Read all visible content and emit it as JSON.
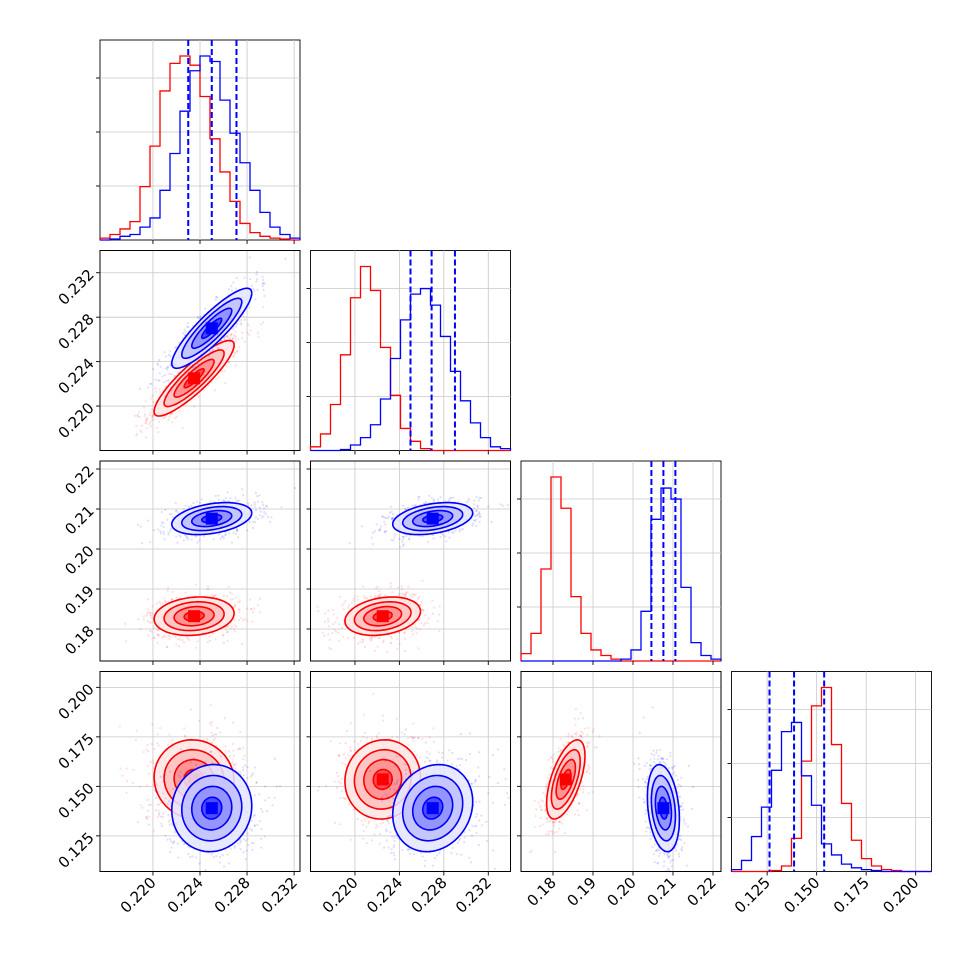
{
  "chart_data": {
    "type": "corner",
    "grid": true,
    "series": [
      {
        "color": "#ff0000"
      },
      {
        "color": "#0000ff"
      }
    ],
    "params": [
      {
        "range": [
          0.2155,
          0.2325
        ],
        "ticks": [
          "0.220",
          "0.224",
          "0.228",
          "0.232"
        ],
        "tick_values": [
          0.22,
          0.224,
          0.228,
          0.232
        ],
        "hist": [
          {
            "series": 0,
            "values": [
              0.01,
              0.03,
              0.06,
              0.1,
              0.29,
              0.51,
              0.81,
              0.96,
              1.0,
              0.95,
              0.78,
              0.55,
              0.37,
              0.21,
              0.09,
              0.04,
              0.02,
              0.01,
              0.005,
              0.0
            ]
          },
          {
            "series": 1,
            "values": [
              0.0,
              0.005,
              0.02,
              0.03,
              0.07,
              0.12,
              0.27,
              0.47,
              0.7,
              0.92,
              1.0,
              0.97,
              0.76,
              0.58,
              0.42,
              0.27,
              0.15,
              0.07,
              0.03,
              0.01
            ]
          }
        ],
        "quantiles": [
          0.223,
          0.225,
          0.2271
        ]
      },
      {
        "range": [
          0.216,
          0.234
        ],
        "ticks": [
          "0.220",
          "0.224",
          "0.228",
          "0.232"
        ],
        "tick_values": [
          0.22,
          0.224,
          0.228,
          0.232
        ],
        "hist": [
          {
            "series": 0,
            "values": [
              0.02,
              0.09,
              0.25,
              0.52,
              0.83,
              1.0,
              0.87,
              0.56,
              0.3,
              0.12,
              0.05,
              0.01,
              0.0,
              0.0,
              0.0,
              0.0,
              0.0,
              0.0,
              0.0,
              0.0
            ]
          },
          {
            "series": 1,
            "values": [
              0.0,
              0.0,
              0.0,
              0.005,
              0.03,
              0.07,
              0.14,
              0.28,
              0.5,
              0.71,
              0.85,
              0.88,
              0.79,
              0.62,
              0.43,
              0.27,
              0.15,
              0.07,
              0.02,
              0.01
            ]
          }
        ],
        "quantiles": [
          0.225,
          0.2269,
          0.229
        ]
      },
      {
        "range": [
          0.172,
          0.222
        ],
        "ticks": [
          "0.18",
          "0.19",
          "0.20",
          "0.21",
          "0.22"
        ],
        "tick_values": [
          0.18,
          0.19,
          0.2,
          0.21,
          0.22
        ],
        "hist": [
          {
            "series": 0,
            "values": [
              0.04,
              0.15,
              0.5,
              1.0,
              0.83,
              0.35,
              0.15,
              0.06,
              0.03,
              0.01,
              0.0,
              0.0,
              0.0,
              0.0,
              0.0,
              0.0,
              0.0,
              0.0,
              0.0,
              0.0
            ]
          },
          {
            "series": 1,
            "values": [
              0.0,
              0.0,
              0.0,
              0.0,
              0.0,
              0.0,
              0.0,
              0.0,
              0.0,
              0.0,
              0.01,
              0.06,
              0.27,
              0.77,
              0.94,
              0.88,
              0.4,
              0.1,
              0.03,
              0.01
            ]
          }
        ],
        "quantiles": [
          0.2046,
          0.2076,
          0.2106
        ]
      },
      {
        "range": [
          0.107,
          0.208
        ],
        "ticks": [
          "0.125",
          "0.150",
          "0.175",
          "0.200"
        ],
        "tick_values": [
          0.125,
          0.15,
          0.175,
          0.2
        ],
        "hist": [
          {
            "series": 0,
            "values": [
              0.0,
              0.0,
              0.0,
              0.0,
              0.005,
              0.03,
              0.18,
              0.6,
              0.9,
              1.0,
              0.69,
              0.37,
              0.17,
              0.07,
              0.03,
              0.01,
              0.005,
              0.0,
              0.0,
              0.0
            ]
          },
          {
            "series": 1,
            "values": [
              0.01,
              0.06,
              0.19,
              0.35,
              0.55,
              0.76,
              0.81,
              0.52,
              0.36,
              0.15,
              0.09,
              0.04,
              0.02,
              0.01,
              0.005,
              0.0,
              0.0,
              0.0,
              0.0,
              0.0
            ]
          }
        ],
        "quantiles": [
          0.1262,
          0.1386,
          0.1538
        ]
      }
    ],
    "scatter": [
      {
        "row": 1,
        "col": 0,
        "dists": [
          {
            "series": 0,
            "mean": [
              0.2235,
              0.2225
            ],
            "sd": [
              0.0017,
              0.0017
            ],
            "rho": 0.88
          },
          {
            "series": 1,
            "mean": [
              0.225,
              0.227
            ],
            "sd": [
              0.0017,
              0.0018
            ],
            "rho": 0.88
          }
        ]
      },
      {
        "row": 2,
        "col": 0,
        "dists": [
          {
            "series": 0,
            "mean": [
              0.2235,
              0.1832
            ],
            "sd": [
              0.0017,
              0.0024
            ],
            "rho": 0.15
          },
          {
            "series": 1,
            "mean": [
              0.225,
              0.2076
            ],
            "sd": [
              0.0017,
              0.002
            ],
            "rho": 0.35
          }
        ]
      },
      {
        "row": 2,
        "col": 1,
        "dists": [
          {
            "series": 0,
            "mean": [
              0.2225,
              0.1832
            ],
            "sd": [
              0.0017,
              0.0024
            ],
            "rho": 0.25
          },
          {
            "series": 1,
            "mean": [
              0.227,
              0.2076
            ],
            "sd": [
              0.0018,
              0.002
            ],
            "rho": 0.35
          }
        ]
      },
      {
        "row": 3,
        "col": 0,
        "dists": [
          {
            "series": 0,
            "mean": [
              0.2235,
              0.1535
            ],
            "sd": [
              0.0017,
              0.01
            ],
            "rho": -0.05
          },
          {
            "series": 1,
            "mean": [
              0.225,
              0.139
            ],
            "sd": [
              0.0017,
              0.011
            ],
            "rho": 0.05
          }
        ]
      },
      {
        "row": 3,
        "col": 1,
        "dists": [
          {
            "series": 0,
            "mean": [
              0.2225,
              0.1535
            ],
            "sd": [
              0.0017,
              0.01
            ],
            "rho": 0.05
          },
          {
            "series": 1,
            "mean": [
              0.227,
              0.139
            ],
            "sd": [
              0.0018,
              0.011
            ],
            "rho": 0.15
          }
        ]
      },
      {
        "row": 3,
        "col": 2,
        "dists": [
          {
            "series": 0,
            "mean": [
              0.1832,
              0.1535
            ],
            "sd": [
              0.0024,
              0.01
            ],
            "rho": 0.6
          },
          {
            "series": 1,
            "mean": [
              0.2076,
              0.139
            ],
            "sd": [
              0.002,
              0.011
            ],
            "rho": -0.25
          }
        ]
      }
    ]
  }
}
